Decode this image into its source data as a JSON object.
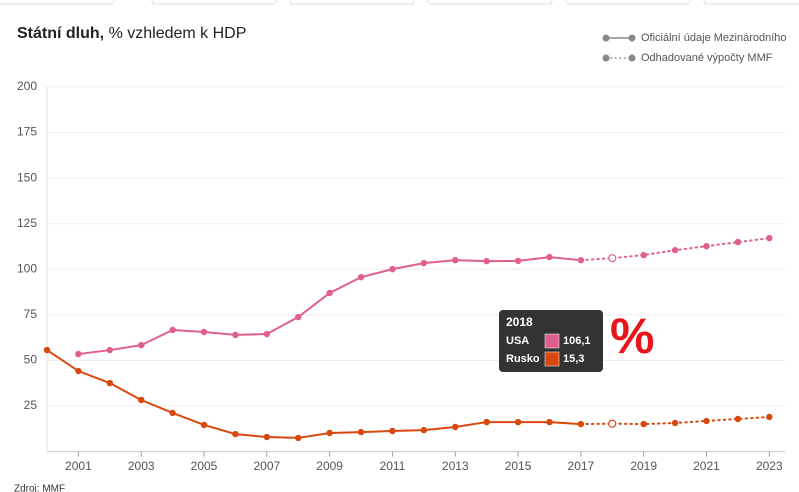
{
  "chart_data": {
    "type": "line",
    "title": "Státní dluh,",
    "subtitle": "% vzhledem k HDP",
    "source": "Zdroj: MMF",
    "annotation": "%",
    "legend": [
      "Oficiální údaje Mezinárodního",
      "Odhadované výpočty MMF"
    ],
    "estimate_start": 2017,
    "x": [
      2000,
      2001,
      2002,
      2003,
      2004,
      2005,
      2006,
      2007,
      2008,
      2009,
      2010,
      2011,
      2012,
      2013,
      2014,
      2015,
      2016,
      2017,
      2018,
      2019,
      2020,
      2021,
      2022,
      2023
    ],
    "series": [
      {
        "name": "USA",
        "color": "#df5f8e",
        "values": [
          null,
          53.5,
          55.7,
          58.4,
          66.7,
          65.6,
          64,
          64.5,
          73.8,
          87,
          95.7,
          100.1,
          103.4,
          105,
          104.5,
          104.6,
          106.7,
          105,
          106.1,
          107.8,
          110.5,
          112.7,
          114.9,
          117.1
        ]
      },
      {
        "name": "Rusko",
        "color": "#d9480f",
        "values": [
          55.7,
          44.2,
          37.6,
          28.3,
          21.2,
          14.6,
          9.6,
          8,
          7.5,
          10.2,
          10.7,
          11.3,
          11.8,
          13.5,
          16.2,
          16.2,
          16.2,
          15.1,
          15.3,
          15.1,
          15.7,
          16.8,
          17.9,
          19
        ]
      }
    ],
    "tooltip": {
      "x": 2018,
      "value_labels": [
        "106,1",
        "15,3"
      ]
    },
    "xlim": [
      2000,
      2023.5
    ],
    "xticks": [
      2001,
      2003,
      2005,
      2007,
      2009,
      2011,
      2013,
      2015,
      2017,
      2019,
      2021,
      2023
    ],
    "ylim": [
      0,
      200
    ],
    "yticks": [
      25,
      50,
      75,
      100,
      125,
      150,
      175,
      200
    ],
    "grid": true
  }
}
